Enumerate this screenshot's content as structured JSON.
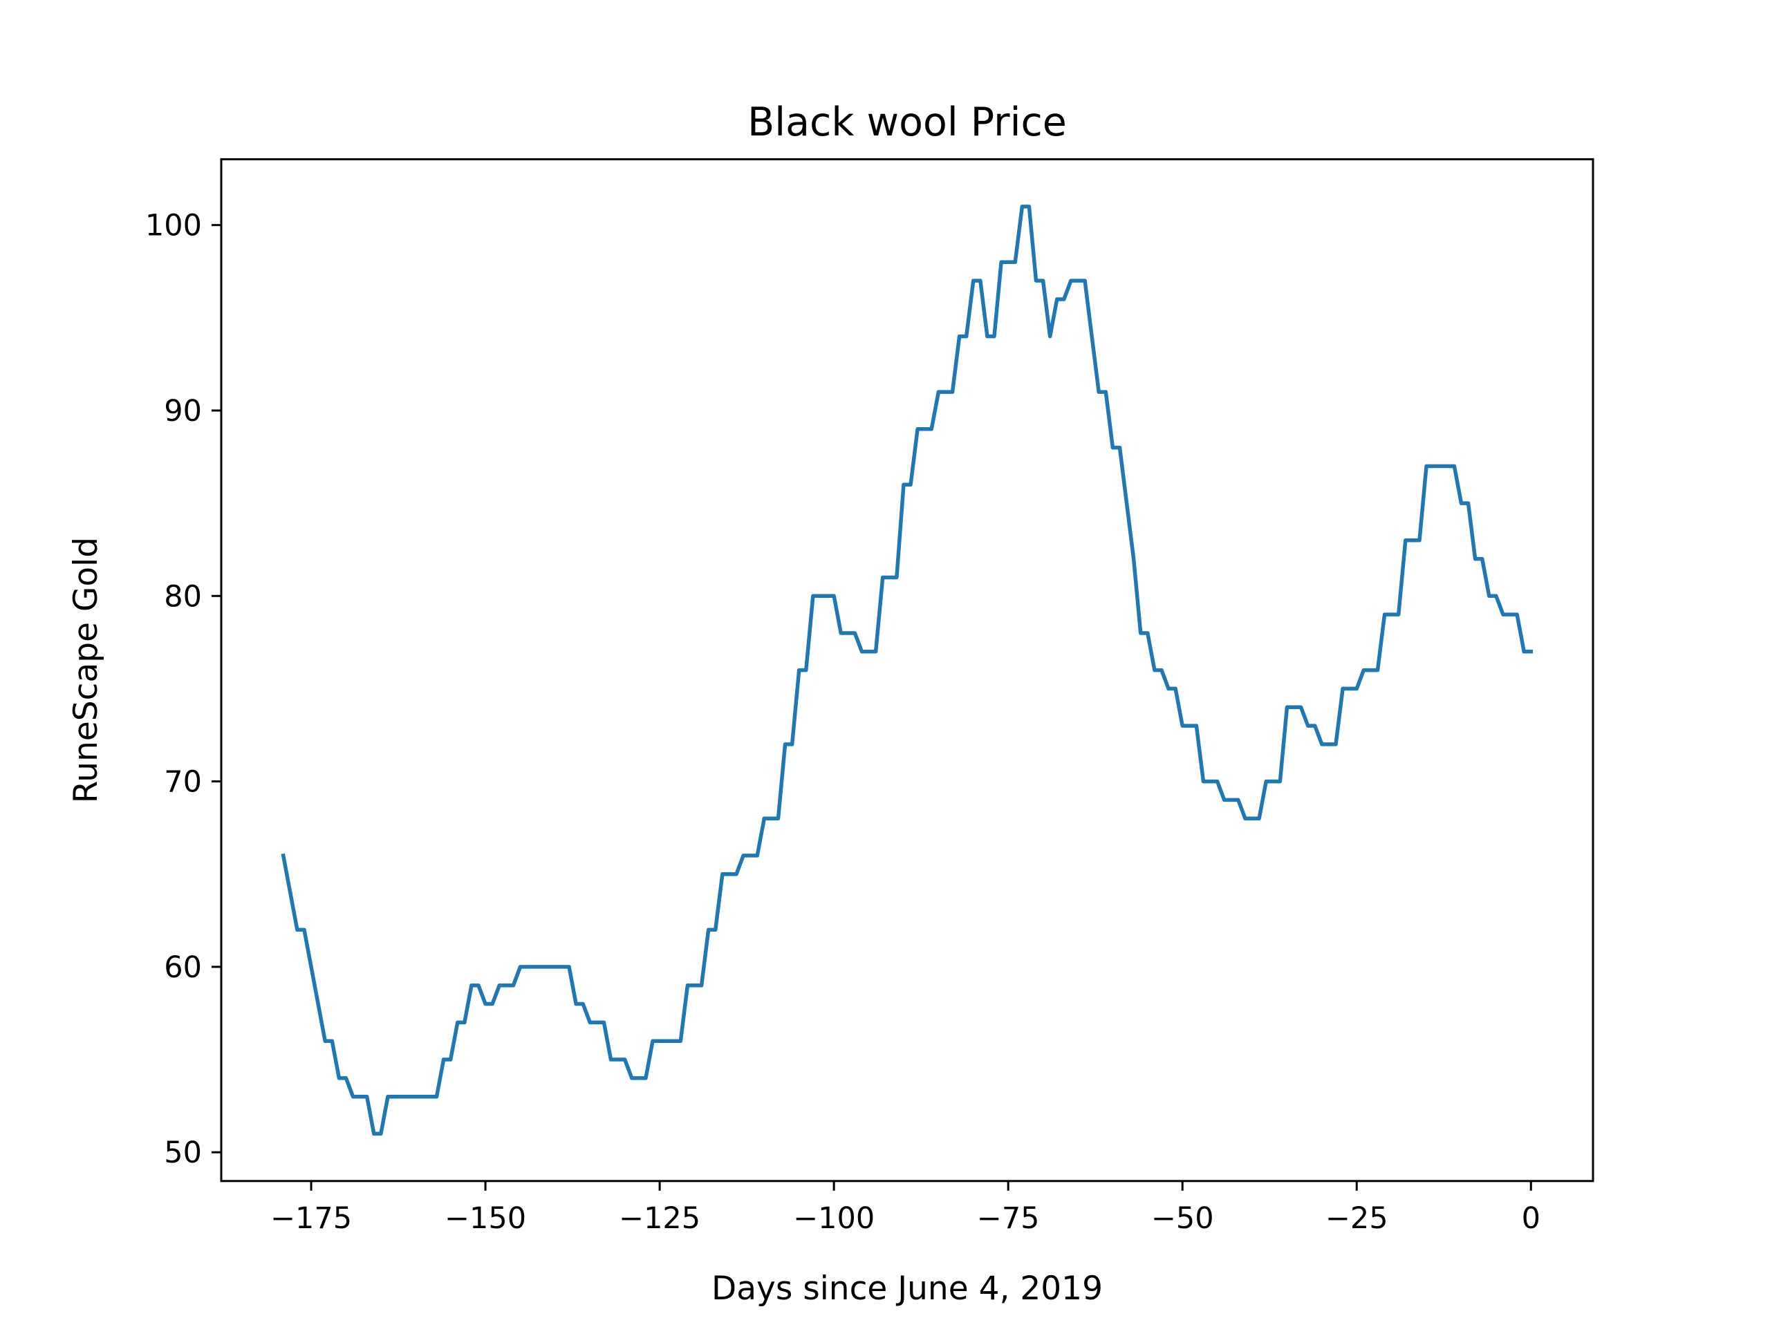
{
  "chart_data": {
    "type": "line",
    "title": "Black wool Price",
    "xlabel": "Days since June 4, 2019",
    "ylabel": "RuneScape Gold",
    "xlim": [
      -187.9,
      8.9
    ],
    "ylim": [
      48.45,
      103.55
    ],
    "xticks": [
      -175,
      -150,
      -125,
      -100,
      -75,
      -50,
      -25,
      0
    ],
    "xtick_labels": [
      "−175",
      "−150",
      "−125",
      "−100",
      "−75",
      "−50",
      "−25",
      "0"
    ],
    "yticks": [
      50,
      60,
      70,
      80,
      90,
      100
    ],
    "ytick_labels": [
      "50",
      "60",
      "70",
      "80",
      "90",
      "100"
    ],
    "grid": false,
    "series": [
      {
        "color": "#1f77b4",
        "x": [
          -179,
          -178,
          -177,
          -176,
          -175,
          -174,
          -173,
          -172,
          -171,
          -170,
          -169,
          -168,
          -167,
          -166,
          -165,
          -164,
          -163,
          -162,
          -161,
          -160,
          -159,
          -158,
          -157,
          -156,
          -155,
          -154,
          -153,
          -152,
          -151,
          -150,
          -149,
          -148,
          -147,
          -146,
          -145,
          -144,
          -143,
          -142,
          -141,
          -140,
          -139,
          -138,
          -137,
          -136,
          -135,
          -134,
          -133,
          -132,
          -131,
          -130,
          -129,
          -128,
          -127,
          -126,
          -125,
          -124,
          -123,
          -122,
          -121,
          -120,
          -119,
          -118,
          -117,
          -116,
          -115,
          -114,
          -113,
          -112,
          -111,
          -110,
          -109,
          -108,
          -107,
          -106,
          -105,
          -104,
          -103,
          -102,
          -101,
          -100,
          -99,
          -98,
          -97,
          -96,
          -95,
          -94,
          -93,
          -92,
          -91,
          -90,
          -89,
          -88,
          -87,
          -86,
          -85,
          -84,
          -83,
          -82,
          -81,
          -80,
          -79,
          -78,
          -77,
          -76,
          -75,
          -74,
          -73,
          -72,
          -71,
          -70,
          -69,
          -68,
          -67,
          -66,
          -65,
          -64,
          -63,
          -62,
          -61,
          -60,
          -59,
          -58,
          -57,
          -56,
          -55,
          -54,
          -53,
          -52,
          -51,
          -50,
          -49,
          -48,
          -47,
          -46,
          -45,
          -44,
          -43,
          -42,
          -41,
          -40,
          -39,
          -38,
          -37,
          -36,
          -35,
          -34,
          -33,
          -32,
          -31,
          -30,
          -29,
          -28,
          -27,
          -26,
          -25,
          -24,
          -23,
          -22,
          -21,
          -20,
          -19,
          -18,
          -17,
          -16,
          -15,
          -14,
          -13,
          -12,
          -11,
          -10,
          -9,
          -8,
          -7,
          -6,
          -5,
          -4,
          -3,
          -2,
          -1,
          0
        ],
        "values": [
          66,
          64,
          62,
          62,
          60,
          58,
          56,
          56,
          54,
          54,
          53,
          53,
          53,
          51,
          51,
          53,
          53,
          53,
          53,
          53,
          53,
          53,
          53,
          55,
          55,
          57,
          57,
          59,
          59,
          58,
          58,
          59,
          59,
          59,
          60,
          60,
          60,
          60,
          60,
          60,
          60,
          60,
          58,
          58,
          57,
          57,
          57,
          55,
          55,
          55,
          54,
          54,
          54,
          56,
          56,
          56,
          56,
          56,
          59,
          59,
          59,
          62,
          62,
          65,
          65,
          65,
          66,
          66,
          66,
          68,
          68,
          68,
          72,
          72,
          76,
          76,
          80,
          80,
          80,
          80,
          78,
          78,
          78,
          77,
          77,
          77,
          81,
          81,
          81,
          86,
          86,
          89,
          89,
          89,
          91,
          91,
          91,
          94,
          94,
          97,
          97,
          94,
          94,
          98,
          98,
          98,
          101,
          101,
          97,
          97,
          94,
          96,
          96,
          97,
          97,
          97,
          94,
          91,
          91,
          88,
          88,
          85,
          82,
          78,
          78,
          76,
          76,
          75,
          75,
          73,
          73,
          73,
          70,
          70,
          70,
          69,
          69,
          69,
          68,
          68,
          68,
          70,
          70,
          70,
          74,
          74,
          74,
          73,
          73,
          72,
          72,
          72,
          75,
          75,
          75,
          76,
          76,
          76,
          79,
          79,
          79,
          83,
          83,
          83,
          87,
          87,
          87,
          87,
          87,
          85,
          85,
          82,
          82,
          80,
          80,
          79,
          79,
          79,
          77,
          77
        ]
      }
    ]
  }
}
